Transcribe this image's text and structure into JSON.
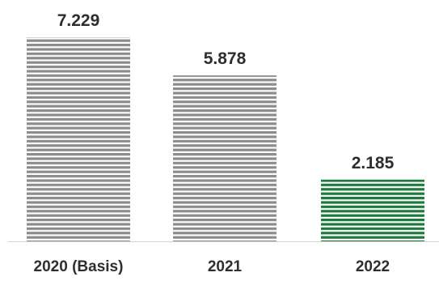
{
  "chart_data": {
    "type": "bar",
    "categories": [
      "2020 (Basis)",
      "2021",
      "2022"
    ],
    "values": [
      7229,
      5878,
      2185
    ],
    "value_labels": [
      "7.229",
      "5.878",
      "2.185"
    ],
    "title": "",
    "xlabel": "",
    "ylabel": "",
    "ylim": [
      0,
      7229
    ],
    "grid": false,
    "legend": "none",
    "bar_fill_pattern": "horizontal-stripes",
    "colors": {
      "bars": [
        "#8c8c8c",
        "#8c8c8c",
        "#1e7a3c"
      ],
      "stripe_gap": "#ffffff",
      "baseline": "#d4d4d4",
      "text": "#2e2e2e"
    }
  }
}
